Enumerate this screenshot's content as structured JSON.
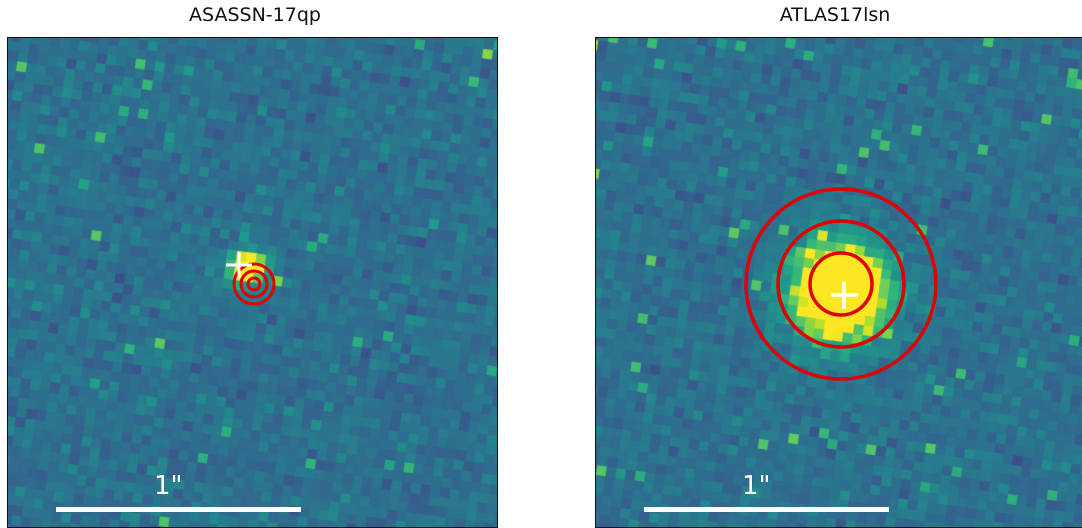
{
  "panels": [
    {
      "title": "ASASSN-17qp",
      "scale_bar_label": "1\"",
      "host_brightness": "compact",
      "marker": "cross",
      "apertures": "three concentric small circles offset from cross"
    },
    {
      "title": "ATLAS17lsn",
      "scale_bar_label": "1\"",
      "host_brightness": "extended",
      "marker": "cross",
      "apertures": "three concentric circles centered on cross"
    }
  ],
  "colors": {
    "colormap": "viridis",
    "aperture": "#e00000",
    "marker": "#ffffff",
    "scale_bar": "#ffffff"
  }
}
